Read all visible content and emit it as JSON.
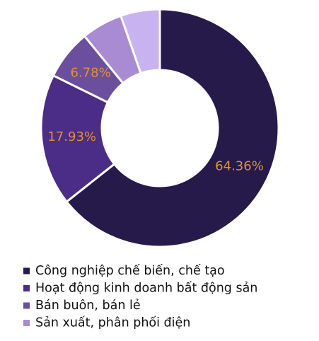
{
  "chart_data": {
    "type": "pie",
    "categories": [
      "Công nghiệp chế biến, chế tạo",
      "Hoạt động kinh doanh bất động sản",
      "Bán buôn, bán lẻ",
      "Sản xuất, phân phối điện",
      null
    ],
    "values": [
      64.36,
      17.93,
      6.78,
      5.6,
      5.33
    ],
    "value_labels": [
      "64.36%",
      "17.93%",
      "6.78%",
      null,
      null
    ],
    "colors": [
      "#261a4a",
      "#4b2c86",
      "#6b4f9e",
      "#a98bd3",
      "#c8b3f0"
    ],
    "label_color": "#e0922f",
    "donut": true
  }
}
